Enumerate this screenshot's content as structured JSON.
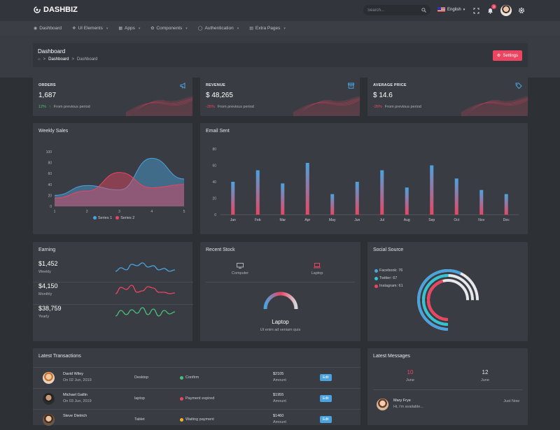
{
  "app": {
    "name": "DASHBIZ"
  },
  "topbar": {
    "search_placeholder": "Search...",
    "language": "English",
    "notification_count": "3"
  },
  "nav": {
    "items": [
      {
        "label": "Dashboard",
        "icon": "dashboard-icon"
      },
      {
        "label": "UI Elements",
        "icon": "layers-icon"
      },
      {
        "label": "Apps",
        "icon": "apps-icon"
      },
      {
        "label": "Components",
        "icon": "components-icon"
      },
      {
        "label": "Authentication",
        "icon": "auth-icon"
      },
      {
        "label": "Extra Pages",
        "icon": "pages-icon"
      }
    ]
  },
  "page": {
    "title": "Dashboard",
    "breadcrumb": [
      "Dashboard",
      "Dashboard"
    ],
    "settings_label": "Settings"
  },
  "stats": [
    {
      "label": "ORDERS",
      "value": "1,687",
      "change": "12%",
      "direction": "up",
      "foot": "From previous period",
      "icon": "megaphone-icon"
    },
    {
      "label": "REVENUE",
      "value": "$ 48,265",
      "change": "-26%",
      "direction": "down",
      "foot": "From previous period",
      "icon": "archive-icon"
    },
    {
      "label": "AVERAGE PRICE",
      "value": "$ 14.6",
      "change": "-26%",
      "direction": "down",
      "foot": "From previous period",
      "icon": "tag-icon"
    }
  ],
  "weekly_sales": {
    "title": "Weekly Sales"
  },
  "email_sent": {
    "title": "Email Sent"
  },
  "chart_data": [
    {
      "type": "area",
      "title": "Weekly Sales",
      "x": [
        1,
        2,
        3,
        4,
        5
      ],
      "xticks": [
        "1",
        "2",
        "3",
        "4",
        "5"
      ],
      "yticks": [
        "0",
        "20",
        "40",
        "60",
        "80",
        "100"
      ],
      "ylim": [
        0,
        100
      ],
      "series": [
        {
          "name": "Series 1",
          "values": [
            20,
            38,
            30,
            88,
            50
          ],
          "color": "#4aa3df"
        },
        {
          "name": "Series 2",
          "values": [
            15,
            28,
            62,
            34,
            40
          ],
          "color": "#ec4561"
        }
      ],
      "legend": "bottom"
    },
    {
      "type": "bar",
      "title": "Email Sent",
      "categories": [
        "Jan",
        "Feb",
        "Mar",
        "Apr",
        "May",
        "Jun",
        "Jul",
        "Aug",
        "Sep",
        "Oct",
        "Nov",
        "Dec"
      ],
      "values": [
        40,
        54,
        38,
        63,
        25,
        40,
        54,
        33,
        60,
        44,
        30,
        25
      ],
      "yticks": [
        "0",
        "20",
        "40",
        "60",
        "80"
      ],
      "ylim": [
        0,
        80
      ]
    }
  ],
  "earning": {
    "title": "Earning",
    "rows": [
      {
        "value": "$1,452",
        "label": "Weekly",
        "color": "#4aa3df"
      },
      {
        "value": "$4,150",
        "label": "Monthly",
        "color": "#ec4561"
      },
      {
        "value": "$38,759",
        "label": "Yearly",
        "color": "#49c07a"
      }
    ]
  },
  "recent_stock": {
    "title": "Recent Stock",
    "tabs": [
      {
        "label": "Computer",
        "icon": "monitor-icon"
      },
      {
        "label": "Laptop",
        "icon": "laptop-icon"
      }
    ],
    "product": "Laptop",
    "description": "Ut enim ad veniam quis"
  },
  "social_source": {
    "title": "Social Source",
    "items": [
      {
        "label": "Facebook: 76",
        "color": "#4aa3df",
        "value": 76
      },
      {
        "label": "Twitter: 67",
        "color": "#34c3d4",
        "value": 67
      },
      {
        "label": "Instagram: 61",
        "color": "#ec4561",
        "value": 61
      }
    ]
  },
  "transactions": {
    "title": "Latest Transactions",
    "edit_label": "Edit",
    "amount_label": "Amount",
    "rows": [
      {
        "name": "David Wiley",
        "date": "On 02 Jun, 2019",
        "device": "Desktop",
        "status": "Confirm",
        "status_color": "#49c07a",
        "amount": "$2105"
      },
      {
        "name": "Michael Gatlin",
        "date": "On 03 Jun, 2019",
        "device": "laptop",
        "status": "Payment expired",
        "status_color": "#ec4561",
        "amount": "$1955"
      },
      {
        "name": "Steve Dietrich",
        "date": "",
        "device": "Tablet",
        "status": "Waiting payment",
        "status_color": "#f5b225",
        "amount": "$1460"
      }
    ]
  },
  "messages": {
    "title": "Latest Messages",
    "dates": [
      {
        "day": "10",
        "month": "June",
        "active": true
      },
      {
        "day": "12",
        "month": "June",
        "active": false
      }
    ],
    "items": [
      {
        "name": "Mary Frye",
        "text": "Hi, i'm available...",
        "time": "Just Now"
      }
    ]
  }
}
